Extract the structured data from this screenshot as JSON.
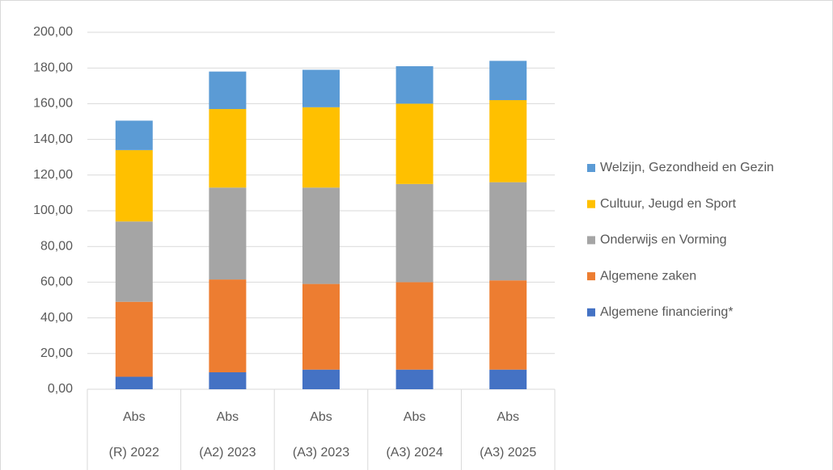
{
  "chart_data": {
    "type": "stacked_bar",
    "categories": [
      "(R) 2022",
      "(A2) 2023",
      "(A3) 2023",
      "(A3) 2024",
      "(A3) 2025"
    ],
    "subcategories": [
      "Abs",
      "Abs",
      "Abs",
      "Abs",
      "Abs"
    ],
    "series": [
      {
        "name": "Algemene financiering*",
        "color": "#4472c4",
        "values": [
          7,
          9.5,
          11,
          11,
          11
        ]
      },
      {
        "name": "Algemene zaken",
        "color": "#ed7d31",
        "values": [
          42,
          52,
          48,
          49,
          50
        ]
      },
      {
        "name": "Onderwijs en Vorming",
        "color": "#a5a5a5",
        "values": [
          45,
          51.5,
          54,
          55,
          55
        ]
      },
      {
        "name": "Cultuur, Jeugd en Sport",
        "color": "#ffc000",
        "values": [
          40,
          44,
          45,
          45,
          46
        ]
      },
      {
        "name": "Welzijn, Gezondheid en Gezin",
        "color": "#5b9bd5",
        "values": [
          16.5,
          21,
          21,
          21,
          22
        ]
      }
    ],
    "ylim": [
      0,
      200
    ],
    "yticks": [
      {
        "value": 0,
        "label": "0,00"
      },
      {
        "value": 20,
        "label": "20,00"
      },
      {
        "value": 40,
        "label": "40,00"
      },
      {
        "value": 60,
        "label": "60,00"
      },
      {
        "value": 80,
        "label": "80,00"
      },
      {
        "value": 100,
        "label": "100,00"
      },
      {
        "value": 120,
        "label": "120,00"
      },
      {
        "value": 140,
        "label": "140,00"
      },
      {
        "value": 160,
        "label": "160,00"
      },
      {
        "value": 180,
        "label": "180,00"
      },
      {
        "value": 200,
        "label": "200,00"
      }
    ],
    "grid": true,
    "legend": "right"
  }
}
